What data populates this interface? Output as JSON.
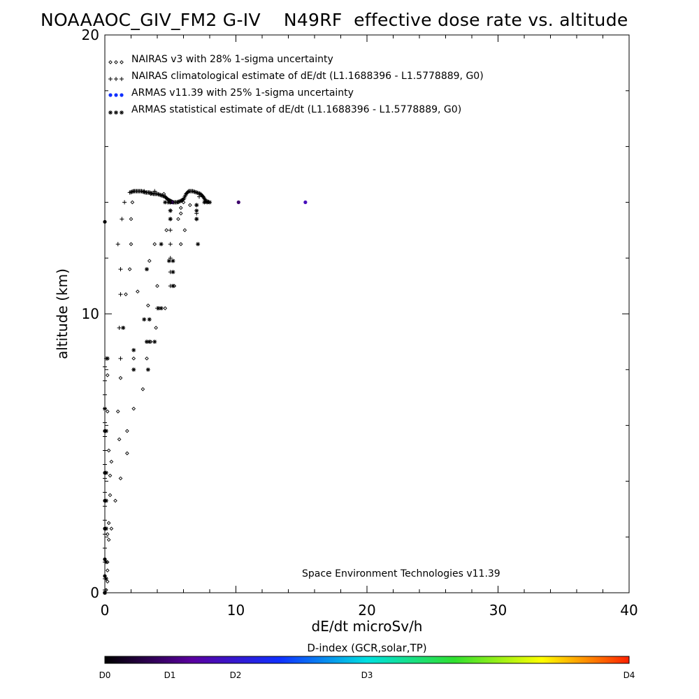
{
  "title": "NOAAAOC_GIV_FM2 G-IV    N49RF  effective dose rate vs. altitude",
  "credit": "Space Environment Technologies v11.39",
  "colorbar": {
    "title": "D-index (GCR,solar,TP)",
    "labels": [
      "D0",
      "D1",
      "D2",
      "D3",
      "D4"
    ],
    "stops": [
      "#000000",
      "#5a00a0",
      "#1030ff",
      "#00e0e0",
      "#30e030",
      "#ffff00",
      "#ff2000"
    ]
  },
  "chart_data": {
    "type": "scatter",
    "xlabel": "dE/dt microSv/h",
    "ylabel": "altitude (km)",
    "xlim": [
      0,
      40
    ],
    "ylim": [
      0,
      20
    ],
    "xticks": [
      0,
      10,
      20,
      30,
      40
    ],
    "yticks": [
      0,
      10,
      20
    ],
    "legend": [
      {
        "name": "NAIRAS v3 with 28% 1-sigma uncertainty",
        "marker": "diamond",
        "color": "#000000"
      },
      {
        "name": "NAIRAS climatological estimate of dE/dt (L1.1688396 - L1.5778889, G0)",
        "marker": "plus",
        "color": "#000000"
      },
      {
        "name": "ARMAS v11.39 with 25% 1-sigma uncertainty",
        "marker": "dot",
        "color": "#1030ff"
      },
      {
        "name": "ARMAS statistical estimate of dE/dt (L1.1688396 - L1.5778889, G0)",
        "marker": "asterisk",
        "color": "#000000"
      }
    ],
    "series": [
      {
        "name": "NAIRAS v3 with 28% 1-sigma uncertainty",
        "marker": "diamond",
        "points": [
          [
            0.1,
            0.1
          ],
          [
            0.2,
            0.4
          ],
          [
            0.2,
            0.8
          ],
          [
            0.2,
            1.1
          ],
          [
            0.3,
            1.9
          ],
          [
            0.2,
            2.1
          ],
          [
            0.5,
            2.3
          ],
          [
            0.3,
            2.5
          ],
          [
            0.4,
            3.5
          ],
          [
            0.8,
            3.3
          ],
          [
            0.4,
            4.2
          ],
          [
            1.2,
            4.1
          ],
          [
            0.5,
            4.7
          ],
          [
            0.3,
            5.1
          ],
          [
            1.7,
            5.0
          ],
          [
            1.1,
            5.5
          ],
          [
            1.7,
            5.8
          ],
          [
            0.2,
            6.5
          ],
          [
            1.0,
            6.5
          ],
          [
            2.2,
            6.6
          ],
          [
            2.9,
            7.3
          ],
          [
            0.2,
            7.8
          ],
          [
            1.2,
            7.7
          ],
          [
            2.2,
            8.4
          ],
          [
            3.2,
            8.4
          ],
          [
            3.5,
            9.0
          ],
          [
            3.9,
            9.5
          ],
          [
            3.3,
            10.3
          ],
          [
            4.6,
            10.2
          ],
          [
            1.6,
            10.7
          ],
          [
            2.5,
            10.8
          ],
          [
            4.0,
            11.0
          ],
          [
            1.9,
            11.6
          ],
          [
            3.4,
            11.9
          ],
          [
            5.3,
            11.0
          ],
          [
            2.0,
            12.5
          ],
          [
            3.8,
            12.5
          ],
          [
            5.8,
            12.5
          ],
          [
            6.1,
            13.0
          ],
          [
            2.0,
            13.4
          ],
          [
            4.7,
            13.0
          ],
          [
            2.1,
            14.0
          ],
          [
            5.2,
            14.0
          ],
          [
            5.6,
            14.0
          ],
          [
            6.0,
            14.0
          ],
          [
            6.5,
            13.9
          ],
          [
            5.8,
            13.8
          ],
          [
            5.8,
            13.6
          ],
          [
            5.6,
            13.4
          ],
          [
            4.5,
            14.3
          ],
          [
            3.5,
            14.3
          ]
        ]
      },
      {
        "name": "NAIRAS climatological estimate of dE/dt",
        "marker": "plus",
        "points": [
          [
            0.0,
            0.1
          ],
          [
            0.0,
            0.5
          ],
          [
            0.0,
            1.1
          ],
          [
            0.0,
            1.6
          ],
          [
            0.0,
            2.1
          ],
          [
            0.0,
            2.6
          ],
          [
            0.0,
            3.1
          ],
          [
            0.0,
            3.6
          ],
          [
            0.0,
            4.1
          ],
          [
            0.0,
            4.6
          ],
          [
            0.0,
            5.1
          ],
          [
            0.0,
            5.6
          ],
          [
            0.0,
            6.1
          ],
          [
            0.0,
            6.6
          ],
          [
            0.0,
            7.1
          ],
          [
            0.0,
            7.6
          ],
          [
            0.0,
            8.1
          ],
          [
            0.1,
            8.4
          ],
          [
            1.2,
            8.4
          ],
          [
            1.1,
            9.5
          ],
          [
            1.2,
            10.7
          ],
          [
            1.2,
            11.6
          ],
          [
            1.0,
            12.5
          ],
          [
            1.3,
            13.4
          ],
          [
            1.5,
            14.0
          ],
          [
            3.2,
            9.0
          ],
          [
            4.0,
            10.2
          ],
          [
            5.0,
            11.0
          ],
          [
            5.0,
            11.5
          ],
          [
            5.0,
            12.0
          ],
          [
            5.0,
            12.5
          ],
          [
            5.0,
            13.0
          ],
          [
            5.0,
            13.4
          ],
          [
            5.0,
            13.7
          ],
          [
            5.0,
            14.0
          ],
          [
            7.0,
            13.4
          ],
          [
            7.0,
            13.6
          ],
          [
            7.0,
            13.9
          ],
          [
            4.8,
            14.0
          ],
          [
            2.2,
            14.4
          ],
          [
            3.0,
            14.4
          ],
          [
            3.8,
            14.4
          ],
          [
            6.4,
            14.4
          ],
          [
            7.2,
            14.2
          ]
        ]
      },
      {
        "name": "ARMAS v11.39 with 25% 1-sigma uncertainty",
        "marker": "dot",
        "points": [
          [
            0.0,
            0.0
          ],
          [
            0.0,
            0.6
          ],
          [
            0.0,
            1.2
          ],
          [
            0.0,
            2.3
          ],
          [
            0.0,
            3.3
          ],
          [
            0.0,
            4.3
          ],
          [
            0.0,
            5.8
          ],
          [
            0.0,
            13.3
          ],
          [
            5.1,
            14.0
          ],
          [
            10.2,
            14.0
          ],
          [
            15.3,
            14.0
          ]
        ],
        "dindex": [
          0,
          0,
          0,
          0,
          0,
          0,
          0,
          0,
          0.8,
          0.9,
          1.7
        ]
      },
      {
        "name": "ARMAS statistical estimate of dE/dt",
        "marker": "asterisk",
        "points": [
          [
            0.0,
            0.0
          ],
          [
            0.1,
            0.5
          ],
          [
            0.1,
            1.1
          ],
          [
            0.1,
            2.3
          ],
          [
            0.1,
            3.3
          ],
          [
            0.1,
            4.3
          ],
          [
            0.1,
            5.8
          ],
          [
            0.0,
            6.6
          ],
          [
            0.2,
            8.4
          ],
          [
            1.4,
            9.5
          ],
          [
            2.2,
            8.0
          ],
          [
            2.2,
            8.7
          ],
          [
            3.3,
            8.0
          ],
          [
            3.2,
            9.0
          ],
          [
            3.4,
            9.0
          ],
          [
            3.8,
            9.0
          ],
          [
            3.0,
            9.8
          ],
          [
            3.4,
            9.8
          ],
          [
            4.1,
            10.2
          ],
          [
            4.3,
            10.2
          ],
          [
            4.3,
            12.5
          ],
          [
            3.2,
            11.6
          ],
          [
            4.9,
            11.9
          ],
          [
            5.2,
            11.9
          ],
          [
            5.2,
            11.5
          ],
          [
            5.2,
            11.0
          ],
          [
            5.0,
            13.4
          ],
          [
            5.0,
            13.7
          ],
          [
            7.1,
            12.5
          ],
          [
            7.0,
            13.4
          ],
          [
            7.0,
            13.7
          ],
          [
            7.0,
            13.9
          ],
          [
            5.0,
            14.0
          ],
          [
            7.6,
            14.0
          ],
          [
            7.8,
            14.0
          ],
          [
            8.0,
            14.0
          ],
          [
            4.9,
            14.0
          ],
          [
            4.6,
            14.0
          ]
        ]
      }
    ],
    "flight_track": {
      "name": "flight-track",
      "x_start": 1.9,
      "x_end": 8.0,
      "points": [
        [
          1.9,
          14.35
        ],
        [
          2.2,
          14.4
        ],
        [
          2.5,
          14.4
        ],
        [
          2.8,
          14.4
        ],
        [
          3.1,
          14.35
        ],
        [
          3.4,
          14.35
        ],
        [
          3.7,
          14.3
        ],
        [
          4.0,
          14.3
        ],
        [
          4.3,
          14.25
        ],
        [
          4.6,
          14.2
        ],
        [
          4.8,
          14.1
        ],
        [
          5.0,
          14.05
        ],
        [
          5.2,
          14.0
        ],
        [
          5.5,
          14.0
        ],
        [
          5.8,
          14.05
        ],
        [
          6.0,
          14.1
        ],
        [
          6.2,
          14.3
        ],
        [
          6.4,
          14.4
        ],
        [
          6.7,
          14.4
        ],
        [
          7.0,
          14.35
        ],
        [
          7.3,
          14.3
        ],
        [
          7.5,
          14.2
        ],
        [
          7.7,
          14.05
        ],
        [
          8.0,
          14.0
        ]
      ]
    }
  }
}
